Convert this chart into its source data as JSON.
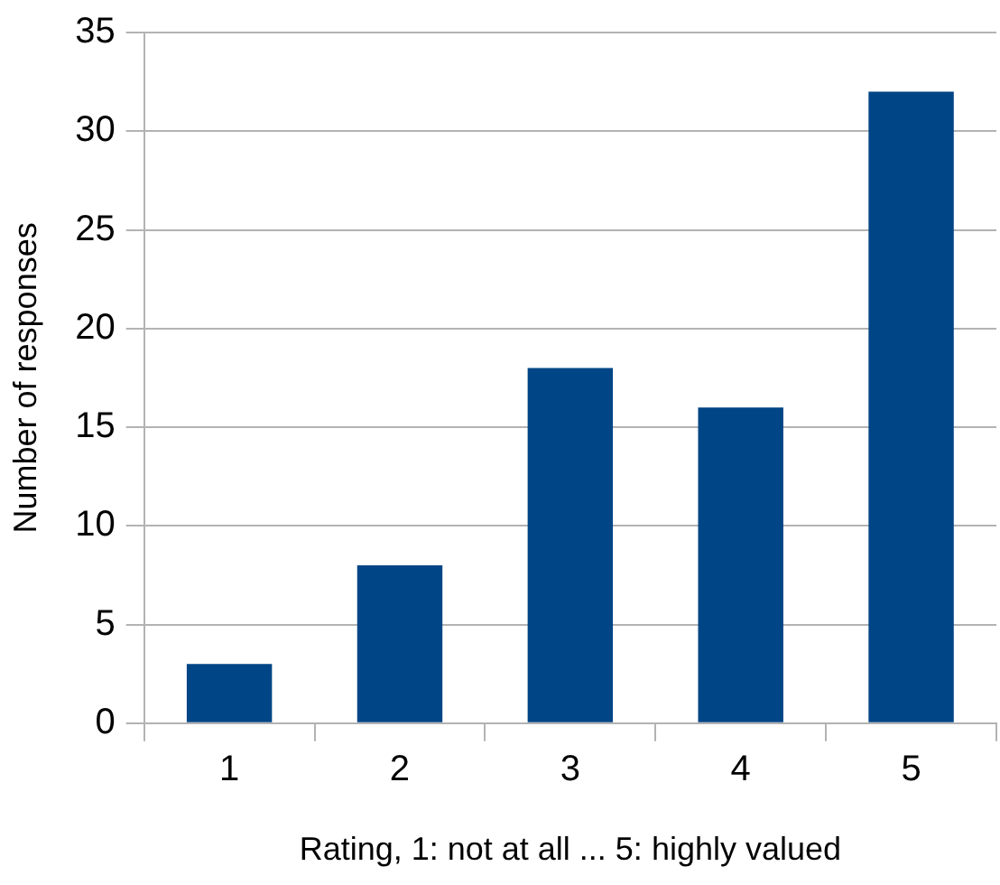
{
  "chart_data": {
    "type": "bar",
    "xlabel": "Rating, 1: not at all ... 5: highly valued",
    "ylabel": "Number of responses",
    "categories": [
      "1",
      "2",
      "3",
      "4",
      "5"
    ],
    "values": [
      3,
      8,
      18,
      16,
      32
    ],
    "color": "#004586",
    "ylim": [
      0,
      35
    ],
    "yticks": [
      0,
      5,
      10,
      15,
      20,
      25,
      30,
      35
    ],
    "grid": "y",
    "legend": false
  }
}
